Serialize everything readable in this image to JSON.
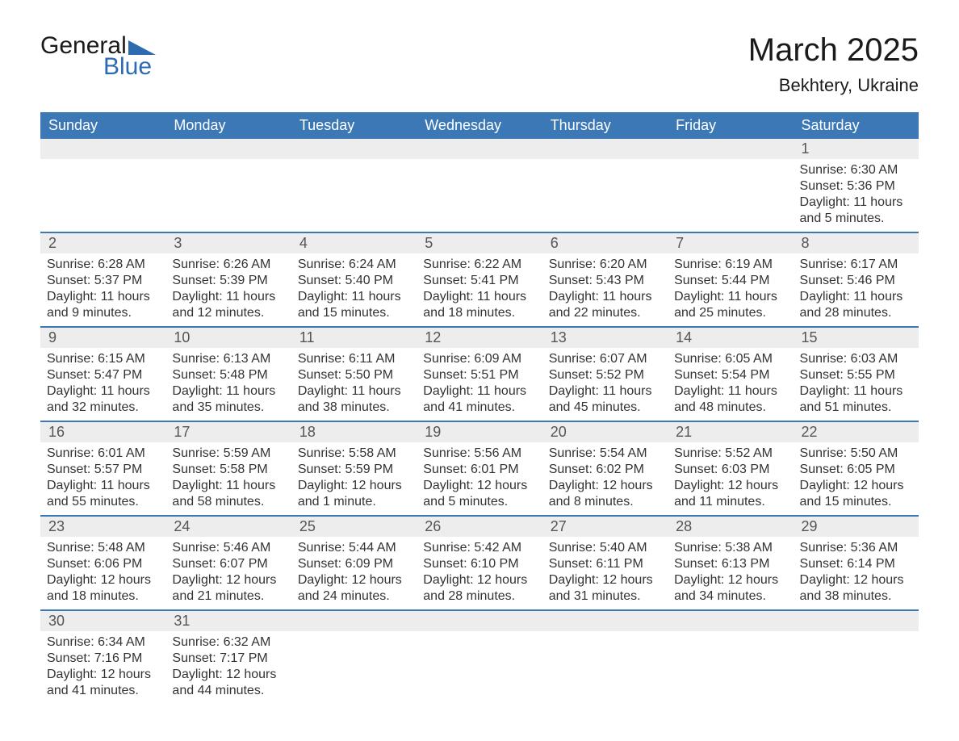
{
  "brand": {
    "part1": "General",
    "part2": "Blue"
  },
  "title": "March 2025",
  "location": "Bekhtery, Ukraine",
  "colors": {
    "header_bg": "#3b78b5",
    "header_fg": "#ffffff",
    "row_rule": "#3b78b5",
    "daynum_bg": "#ededed",
    "text": "#333333",
    "brand_blue": "#2d6bb0"
  },
  "columns": [
    "Sunday",
    "Monday",
    "Tuesday",
    "Wednesday",
    "Thursday",
    "Friday",
    "Saturday"
  ],
  "weeks": [
    [
      null,
      null,
      null,
      null,
      null,
      null,
      {
        "n": "1",
        "sunrise": "6:30 AM",
        "sunset": "5:36 PM",
        "daylight": "11 hours and 5 minutes."
      }
    ],
    [
      {
        "n": "2",
        "sunrise": "6:28 AM",
        "sunset": "5:37 PM",
        "daylight": "11 hours and 9 minutes."
      },
      {
        "n": "3",
        "sunrise": "6:26 AM",
        "sunset": "5:39 PM",
        "daylight": "11 hours and 12 minutes."
      },
      {
        "n": "4",
        "sunrise": "6:24 AM",
        "sunset": "5:40 PM",
        "daylight": "11 hours and 15 minutes."
      },
      {
        "n": "5",
        "sunrise": "6:22 AM",
        "sunset": "5:41 PM",
        "daylight": "11 hours and 18 minutes."
      },
      {
        "n": "6",
        "sunrise": "6:20 AM",
        "sunset": "5:43 PM",
        "daylight": "11 hours and 22 minutes."
      },
      {
        "n": "7",
        "sunrise": "6:19 AM",
        "sunset": "5:44 PM",
        "daylight": "11 hours and 25 minutes."
      },
      {
        "n": "8",
        "sunrise": "6:17 AM",
        "sunset": "5:46 PM",
        "daylight": "11 hours and 28 minutes."
      }
    ],
    [
      {
        "n": "9",
        "sunrise": "6:15 AM",
        "sunset": "5:47 PM",
        "daylight": "11 hours and 32 minutes."
      },
      {
        "n": "10",
        "sunrise": "6:13 AM",
        "sunset": "5:48 PM",
        "daylight": "11 hours and 35 minutes."
      },
      {
        "n": "11",
        "sunrise": "6:11 AM",
        "sunset": "5:50 PM",
        "daylight": "11 hours and 38 minutes."
      },
      {
        "n": "12",
        "sunrise": "6:09 AM",
        "sunset": "5:51 PM",
        "daylight": "11 hours and 41 minutes."
      },
      {
        "n": "13",
        "sunrise": "6:07 AM",
        "sunset": "5:52 PM",
        "daylight": "11 hours and 45 minutes."
      },
      {
        "n": "14",
        "sunrise": "6:05 AM",
        "sunset": "5:54 PM",
        "daylight": "11 hours and 48 minutes."
      },
      {
        "n": "15",
        "sunrise": "6:03 AM",
        "sunset": "5:55 PM",
        "daylight": "11 hours and 51 minutes."
      }
    ],
    [
      {
        "n": "16",
        "sunrise": "6:01 AM",
        "sunset": "5:57 PM",
        "daylight": "11 hours and 55 minutes."
      },
      {
        "n": "17",
        "sunrise": "5:59 AM",
        "sunset": "5:58 PM",
        "daylight": "11 hours and 58 minutes."
      },
      {
        "n": "18",
        "sunrise": "5:58 AM",
        "sunset": "5:59 PM",
        "daylight": "12 hours and 1 minute."
      },
      {
        "n": "19",
        "sunrise": "5:56 AM",
        "sunset": "6:01 PM",
        "daylight": "12 hours and 5 minutes."
      },
      {
        "n": "20",
        "sunrise": "5:54 AM",
        "sunset": "6:02 PM",
        "daylight": "12 hours and 8 minutes."
      },
      {
        "n": "21",
        "sunrise": "5:52 AM",
        "sunset": "6:03 PM",
        "daylight": "12 hours and 11 minutes."
      },
      {
        "n": "22",
        "sunrise": "5:50 AM",
        "sunset": "6:05 PM",
        "daylight": "12 hours and 15 minutes."
      }
    ],
    [
      {
        "n": "23",
        "sunrise": "5:48 AM",
        "sunset": "6:06 PM",
        "daylight": "12 hours and 18 minutes."
      },
      {
        "n": "24",
        "sunrise": "5:46 AM",
        "sunset": "6:07 PM",
        "daylight": "12 hours and 21 minutes."
      },
      {
        "n": "25",
        "sunrise": "5:44 AM",
        "sunset": "6:09 PM",
        "daylight": "12 hours and 24 minutes."
      },
      {
        "n": "26",
        "sunrise": "5:42 AM",
        "sunset": "6:10 PM",
        "daylight": "12 hours and 28 minutes."
      },
      {
        "n": "27",
        "sunrise": "5:40 AM",
        "sunset": "6:11 PM",
        "daylight": "12 hours and 31 minutes."
      },
      {
        "n": "28",
        "sunrise": "5:38 AM",
        "sunset": "6:13 PM",
        "daylight": "12 hours and 34 minutes."
      },
      {
        "n": "29",
        "sunrise": "5:36 AM",
        "sunset": "6:14 PM",
        "daylight": "12 hours and 38 minutes."
      }
    ],
    [
      {
        "n": "30",
        "sunrise": "6:34 AM",
        "sunset": "7:16 PM",
        "daylight": "12 hours and 41 minutes."
      },
      {
        "n": "31",
        "sunrise": "6:32 AM",
        "sunset": "7:17 PM",
        "daylight": "12 hours and 44 minutes."
      },
      null,
      null,
      null,
      null,
      null
    ]
  ],
  "labels": {
    "sunrise_prefix": "Sunrise: ",
    "sunset_prefix": "Sunset: ",
    "daylight_prefix": "Daylight: "
  }
}
